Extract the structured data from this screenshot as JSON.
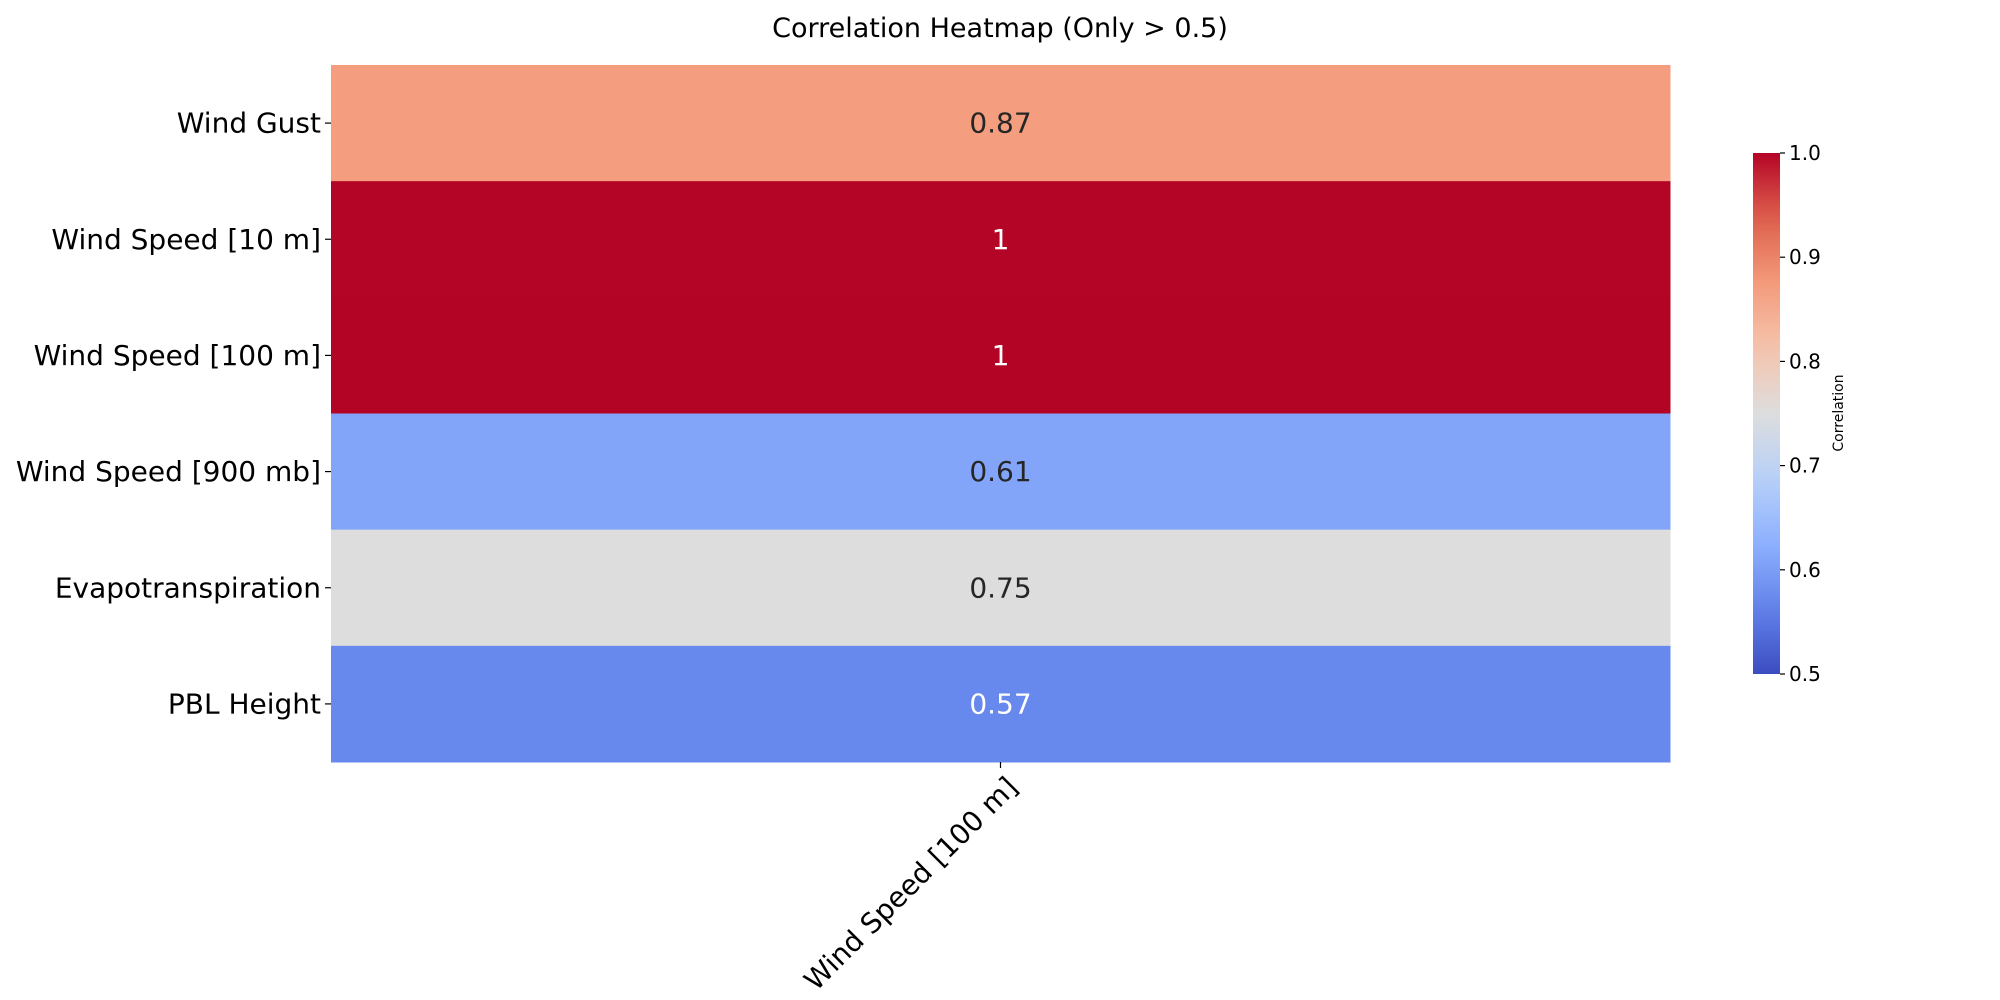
{
  "chart_data": {
    "type": "heatmap",
    "title": "Correlation Heatmap (Only > 0.5)",
    "rows": [
      "Wind Gust",
      "Wind Speed [10 m]",
      "Wind Speed [100 m]",
      "Wind Speed [900 mb]",
      "Evapotranspiration",
      "PBL Height"
    ],
    "columns": [
      "Wind Speed [100 m]"
    ],
    "values": [
      [
        0.87
      ],
      [
        0.999
      ],
      [
        1.0
      ],
      [
        0.61
      ],
      [
        0.75
      ],
      [
        0.57
      ]
    ],
    "cell_labels": [
      [
        "0.87"
      ],
      [
        "1"
      ],
      [
        "1"
      ],
      [
        "0.61"
      ],
      [
        "0.75"
      ],
      [
        "0.57"
      ]
    ],
    "colormap": "coolwarm",
    "vmin": 0.5,
    "vmax": 1.0,
    "colorbar": {
      "label": "Correlation",
      "ticks": [
        "0.5",
        "0.6",
        "0.7",
        "0.8",
        "0.9",
        "1.0"
      ]
    }
  }
}
